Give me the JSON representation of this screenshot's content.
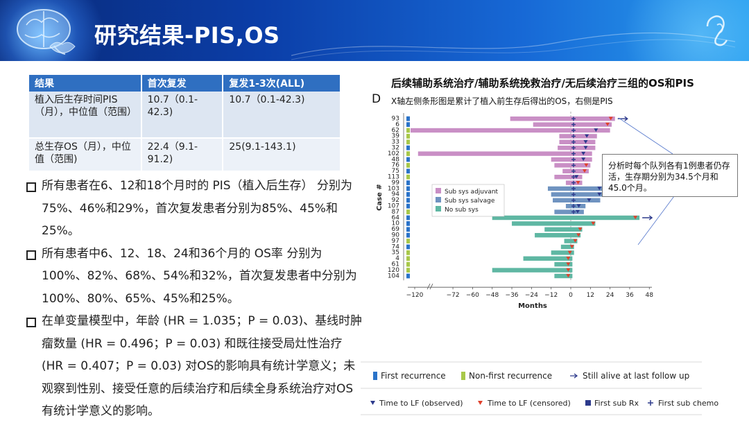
{
  "header": {
    "title": "研究结果-PIS,OS"
  },
  "table": {
    "headers": [
      "结果",
      "首次复发",
      "复发1-3次(ALL)"
    ],
    "rows": [
      [
        "植入后生存时间PIS（月），中位值（范围）",
        "10.7（0.1-42.3)",
        "10.7（0.1-42.3)"
      ],
      [
        "总生存OS（月），中位值（范围)",
        "22.4（9.1-91.2)",
        "25(9.1-143.1)"
      ]
    ]
  },
  "bullets": [
    "所有患者在6、12和18个月时的 PIS（植入后生存） 分别为75%、46%和29%，首次复发患者分别为85%、45%和25%。",
    "所有患者中6、12、18、24和36个月的 OS率 分别为100%、82%、68%、54%和32%，首次复发患者中分别为100%、80%、65%、45%和25%。",
    "在单变量模型中，年龄 (HR = 1.035；P = 0.03)、基线时肿瘤数量 (HR = 0.496；P = 0.03) 和既往接受局灶性治疗 (HR = 0.407；P = 0.03) 对OS的影响具有统计学意义；未观察到性别、接受任意的后续治疗和后续全身系统治疗对OS有统计学意义的影响。"
  ],
  "figure": {
    "title": "后续辅助系统治疗/辅助系统挽救治疗/无后续治疗三组的OS和PIS",
    "panel": "D",
    "note": "X轴左侧条形图是累计了植入前生存后得出的OS，右侧是PIS",
    "callout": "分析时每个队列各有1例患者仍存活，生存期分别为34.5个月和45.0个月。"
  },
  "chart_data": {
    "type": "bar",
    "orientation": "horizontal swimmer plot",
    "xlabel": "Months",
    "ylabel": "Case #",
    "xticks": [
      -120,
      -72,
      -60,
      -48,
      -36,
      -24,
      -12,
      0,
      12,
      24,
      36,
      48
    ],
    "x_break_between": [
      -120,
      -72
    ],
    "colors": {
      "adjuvant": "#c98fc5",
      "salvage": "#6f93c0",
      "nosub": "#5fb7a3",
      "first_recurrence": "#2a73c9",
      "nonfirst_recurrence": "#a8c84a",
      "marker": "#2d3a8c",
      "censored": "#e0402b"
    },
    "legend_groups": [
      "Sub sys adjuvant",
      "Sub sys salvage",
      "No sub sys"
    ],
    "legend_markers": {
      "first_recurrence": "First recurrence",
      "nonfirst_recurrence": "Non-first recurrence",
      "still_alive": "Still alive at last follow up",
      "lf_observed": "Time to LF (observed)",
      "lf_censored": "Time to LF (censored)",
      "first_sub_rx": "First sub Rx",
      "first_sub_chemo": "First sub chemo"
    },
    "cases": [
      {
        "id": "93",
        "group": "adjuvant",
        "rec": "first",
        "left": -37,
        "right": 27,
        "alive": true,
        "censored": true
      },
      {
        "id": "6",
        "group": "adjuvant",
        "rec": "first",
        "left": -23,
        "right": 25,
        "censored": true
      },
      {
        "id": "62",
        "group": "adjuvant",
        "rec": "nonfirst",
        "left": -135,
        "right": 24
      },
      {
        "id": "39",
        "group": "adjuvant",
        "rec": "nonfirst",
        "left": -7,
        "right": 16
      },
      {
        "id": "33",
        "group": "adjuvant",
        "rec": "nonfirst",
        "left": -7,
        "right": 15
      },
      {
        "id": "32",
        "group": "adjuvant",
        "rec": "first",
        "left": -8,
        "right": 15
      },
      {
        "id": "102",
        "group": "adjuvant",
        "rec": "nonfirst",
        "left": -108,
        "right": 13
      },
      {
        "id": "48",
        "group": "adjuvant",
        "rec": "first",
        "left": -12,
        "right": 13
      },
      {
        "id": "76",
        "group": "adjuvant",
        "rec": "nonfirst",
        "left": -10,
        "right": 12,
        "censored": true
      },
      {
        "id": "75",
        "group": "adjuvant",
        "rec": "first",
        "left": -5,
        "right": 11,
        "censored": true
      },
      {
        "id": "113",
        "group": "adjuvant",
        "rec": "nonfirst",
        "left": -10,
        "right": 7
      },
      {
        "id": "99",
        "group": "adjuvant",
        "rec": "first",
        "left": -3,
        "right": 7,
        "censored": true
      },
      {
        "id": "103",
        "group": "salvage",
        "rec": "first",
        "left": -14,
        "right": 27
      },
      {
        "id": "94",
        "group": "salvage",
        "rec": "first",
        "left": -12,
        "right": 27
      },
      {
        "id": "92",
        "group": "salvage",
        "rec": "first",
        "left": -11,
        "right": 18
      },
      {
        "id": "107",
        "group": "salvage",
        "rec": "first",
        "left": -3,
        "right": 9
      },
      {
        "id": "87",
        "group": "salvage",
        "rec": "nonfirst",
        "left": -10,
        "right": 8
      },
      {
        "id": "64",
        "group": "nosub",
        "rec": "first",
        "left": -48,
        "right": 42,
        "alive": true,
        "censored": true
      },
      {
        "id": "10",
        "group": "nosub",
        "rec": "first",
        "left": -36,
        "right": 15
      },
      {
        "id": "69",
        "group": "nosub",
        "rec": "first",
        "left": -16,
        "right": 7
      },
      {
        "id": "90",
        "group": "nosub",
        "rec": "first",
        "left": -22,
        "right": 6
      },
      {
        "id": "97",
        "group": "nosub",
        "rec": "nonfirst",
        "left": -4,
        "right": 4
      },
      {
        "id": "74",
        "group": "nosub",
        "rec": "first",
        "left": -6,
        "right": 2
      },
      {
        "id": "35",
        "group": "nosub",
        "rec": "nonfirst",
        "left": -12,
        "right": 2,
        "censored": true
      },
      {
        "id": "4",
        "group": "nosub",
        "rec": "nonfirst",
        "left": -29,
        "right": 1,
        "censored": true
      },
      {
        "id": "61",
        "group": "nosub",
        "rec": "nonfirst",
        "left": -10,
        "right": 1,
        "censored": true
      },
      {
        "id": "120",
        "group": "nosub",
        "rec": "nonfirst",
        "left": -48,
        "right": 1,
        "censored": true
      },
      {
        "id": "104",
        "group": "nosub",
        "rec": "first",
        "left": -10,
        "right": 1,
        "censored": true
      }
    ]
  }
}
